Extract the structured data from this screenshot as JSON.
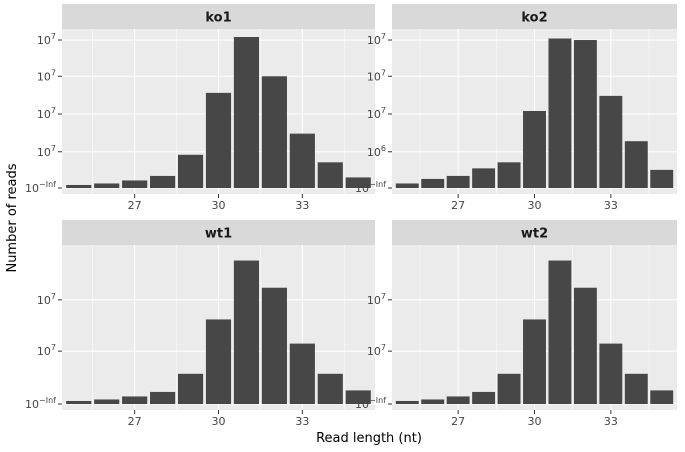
{
  "chart_data": {
    "type": "bar",
    "facet": "wrap-2x2",
    "xlabel": "Read length (nt)",
    "ylabel": "Number of reads",
    "x": [
      25,
      26,
      27,
      28,
      29,
      30,
      31,
      32,
      33,
      34,
      35
    ],
    "x_ticks": [
      27,
      30,
      33
    ],
    "panels": [
      {
        "name": "ko1",
        "y_ticks": [
          {
            "base": "10",
            "exp": "7",
            "level": 0.98
          },
          {
            "base": "10",
            "exp": "7",
            "level": 0.74
          },
          {
            "base": "10",
            "exp": "7",
            "level": 0.49
          },
          {
            "base": "10",
            "exp": "7",
            "level": 0.24
          },
          {
            "base": "10",
            "exp": "−Inf",
            "level": 0.0
          }
        ],
        "bar_levels": [
          0.02,
          0.03,
          0.05,
          0.08,
          0.22,
          0.63,
          1.0,
          0.74,
          0.36,
          0.17,
          0.07
        ]
      },
      {
        "name": "ko2",
        "y_ticks": [
          {
            "base": "10",
            "exp": "7",
            "level": 0.98
          },
          {
            "base": "10",
            "exp": "7",
            "level": 0.74
          },
          {
            "base": "10",
            "exp": "7",
            "level": 0.49
          },
          {
            "base": "10",
            "exp": "6",
            "level": 0.24
          },
          {
            "base": "10",
            "exp": "−Inf",
            "level": 0.0
          }
        ],
        "bar_levels": [
          0.03,
          0.06,
          0.08,
          0.13,
          0.17,
          0.51,
          0.99,
          0.98,
          0.61,
          0.31,
          0.12
        ]
      },
      {
        "name": "wt1",
        "y_ticks": [
          {
            "base": "10",
            "exp": "7",
            "level": 0.69
          },
          {
            "base": "10",
            "exp": "7",
            "level": 0.35
          },
          {
            "base": "10",
            "exp": "−Inf",
            "level": 0.0
          }
        ],
        "bar_levels": [
          0.02,
          0.03,
          0.05,
          0.08,
          0.2,
          0.56,
          0.95,
          0.77,
          0.4,
          0.2,
          0.09
        ]
      },
      {
        "name": "wt2",
        "y_ticks": [
          {
            "base": "10",
            "exp": "7",
            "level": 0.69
          },
          {
            "base": "10",
            "exp": "7",
            "level": 0.35
          },
          {
            "base": "10",
            "exp": "−Inf",
            "level": 0.0
          }
        ],
        "bar_levels": [
          0.02,
          0.03,
          0.05,
          0.08,
          0.2,
          0.56,
          0.95,
          0.77,
          0.4,
          0.2,
          0.09
        ]
      }
    ],
    "colors": {
      "bar": "#474747",
      "panel_bg": "#ebebeb",
      "strip_bg": "#d9d9d9",
      "grid": "#ffffff"
    },
    "grid": true,
    "legend": "none"
  }
}
